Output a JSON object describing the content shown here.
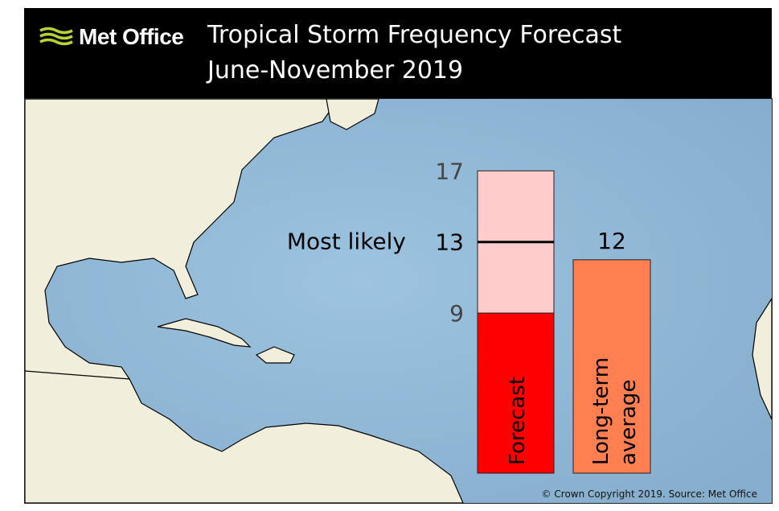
{
  "header": {
    "logo_text": "Met Office",
    "title": "Tropical Storm Frequency Forecast",
    "subtitle": "June-November 2019"
  },
  "copyright": "© Crown Copyright 2019. Source: Met Office",
  "colors": {
    "ocean": "#8fb6d4",
    "land": "#f1efdc",
    "forecast_low": "#ff0000",
    "forecast_range": "#ffcccc",
    "average": "#ff7f50"
  },
  "chart_data": {
    "type": "bar",
    "categories": [
      "Forecast",
      "Long-term average"
    ],
    "forecast": {
      "label": "Forecast",
      "low": 9,
      "most_likely": 13,
      "high": 17,
      "low_label": "9",
      "mid_label": "13",
      "high_label": "17",
      "most_likely_label": "Most likely"
    },
    "average": {
      "label_line1": "Long-term",
      "label_line2": "average",
      "value": 12,
      "value_label": "12"
    },
    "ylim": [
      0,
      17
    ]
  }
}
